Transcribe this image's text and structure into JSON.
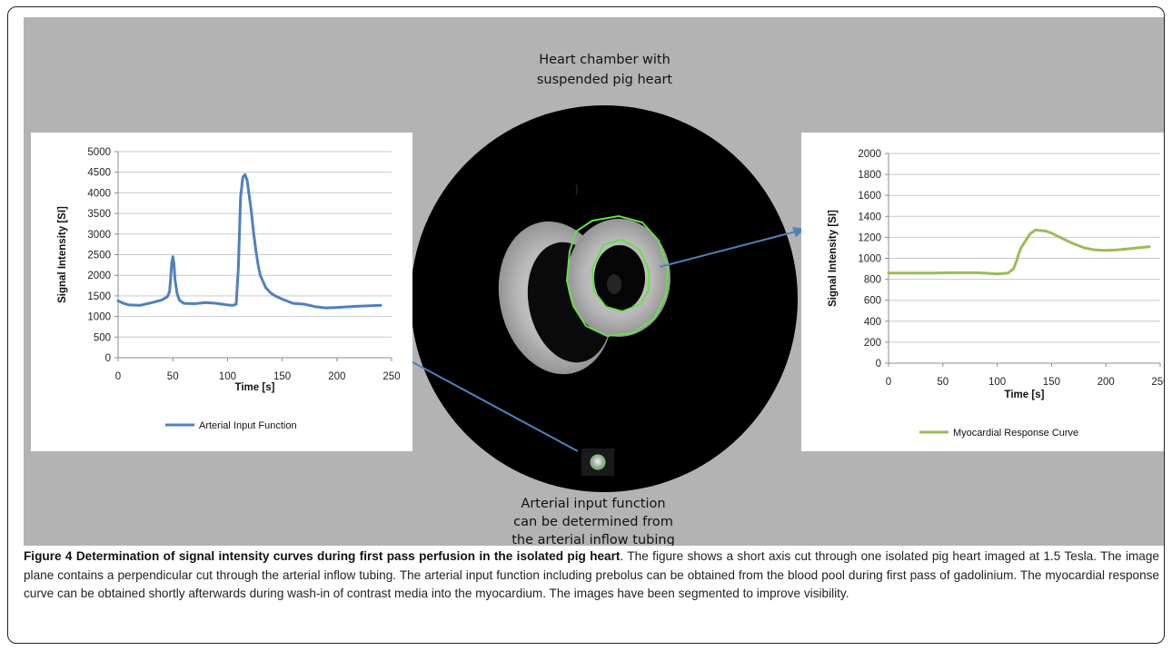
{
  "figure": {
    "top_label": [
      "Heart chamber with",
      "suspended pig heart"
    ],
    "bottom_label": [
      "Arterial input function",
      "can be  determined from",
      "the arterial inflow tubing"
    ],
    "caption": {
      "title": "Figure 4 Determination of signal intensity curves during first pass perfusion in the isolated pig heart",
      "text": ". The figure shows a short axis cut through one isolated pig heart imaged at 1.5 Tesla. The image plane contains a perpendicular cut through the arterial inflow tubing. The arterial input function including prebolus can be obtained from the blood pool during first pass of gadolinium. The myocardial response curve can be obtained shortly afterwards during wash-in of contrast media into the myocardium. The images have been segmented to improve visibility."
    },
    "colors": {
      "panel_background": "#b3b3b3",
      "arterial_line": "#4f81bd",
      "myocardial_line": "#9bbb59",
      "segmentation_contour": "#66e04a",
      "arrow": "#4f81bd"
    }
  },
  "chart_data": [
    {
      "type": "line",
      "title": "",
      "xlabel": "Time  [s]",
      "ylabel": "Signal Intensity [SI]",
      "xlim": [
        0,
        250
      ],
      "ylim": [
        0,
        5000
      ],
      "xticks": [
        0,
        50,
        100,
        150,
        200,
        250
      ],
      "yticks": [
        0,
        500,
        1000,
        1500,
        2000,
        2500,
        3000,
        3500,
        4000,
        4500,
        5000
      ],
      "grid": "horizontal",
      "legend": "bottom",
      "series": [
        {
          "name": "Arterial Input Function",
          "color": "#4f81bd",
          "x": [
            0,
            5,
            10,
            20,
            30,
            40,
            45,
            47,
            48,
            49,
            50,
            51,
            52,
            54,
            56,
            60,
            70,
            80,
            90,
            100,
            105,
            108,
            110,
            112,
            114,
            116,
            118,
            120,
            122,
            124,
            126,
            128,
            130,
            135,
            140,
            145,
            150,
            160,
            170,
            180,
            190,
            200,
            220,
            240
          ],
          "values": [
            1380,
            1320,
            1280,
            1270,
            1330,
            1400,
            1480,
            1600,
            1900,
            2300,
            2450,
            2300,
            1900,
            1550,
            1400,
            1320,
            1310,
            1340,
            1320,
            1280,
            1270,
            1300,
            2200,
            3900,
            4380,
            4440,
            4300,
            3900,
            3500,
            3000,
            2600,
            2250,
            2000,
            1700,
            1560,
            1480,
            1420,
            1320,
            1300,
            1240,
            1210,
            1220,
            1250,
            1270
          ]
        }
      ]
    },
    {
      "type": "line",
      "title": "",
      "xlabel": "Time [s]",
      "ylabel": "Signal Intensity [SI]",
      "xlim": [
        0,
        250
      ],
      "ylim": [
        0,
        2000
      ],
      "xticks": [
        0,
        50,
        100,
        150,
        200,
        250
      ],
      "yticks": [
        0,
        200,
        400,
        600,
        800,
        1000,
        1200,
        1400,
        1600,
        1800,
        2000
      ],
      "grid": "horizontal",
      "legend": "bottom",
      "series": [
        {
          "name": "Myocardial Response Curve",
          "color": "#9bbb59",
          "x": [
            0,
            20,
            40,
            60,
            80,
            90,
            100,
            110,
            115,
            118,
            120,
            122,
            125,
            130,
            135,
            140,
            145,
            150,
            160,
            170,
            180,
            190,
            200,
            210,
            220,
            230,
            240
          ],
          "values": [
            860,
            860,
            860,
            862,
            862,
            858,
            850,
            860,
            900,
            980,
            1050,
            1100,
            1150,
            1230,
            1270,
            1265,
            1260,
            1240,
            1190,
            1140,
            1100,
            1080,
            1075,
            1080,
            1090,
            1100,
            1110
          ]
        }
      ]
    }
  ]
}
